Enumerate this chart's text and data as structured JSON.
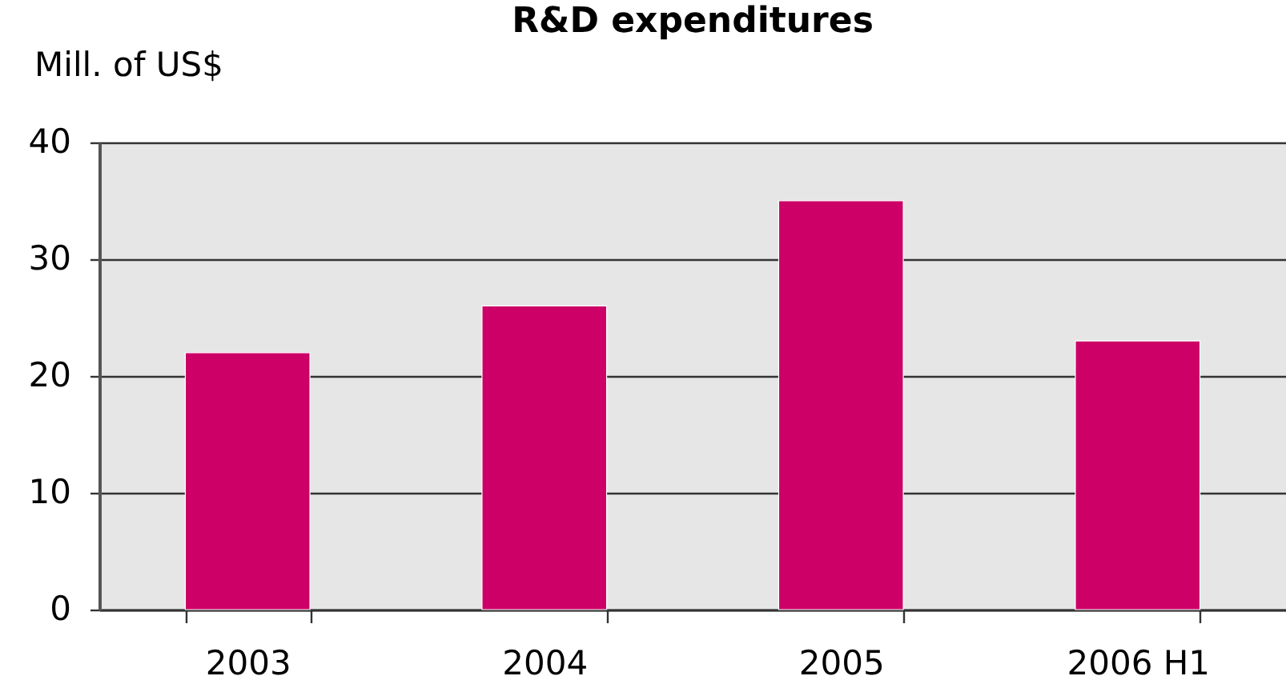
{
  "chart_data": {
    "type": "bar",
    "title": "R&D expenditures",
    "ylabel": "Mill. of US$",
    "categories": [
      "2003",
      "2004",
      "2005",
      "2006 H1"
    ],
    "values": [
      22,
      26,
      35,
      23
    ],
    "color": "#cc0066",
    "ylim": [
      0,
      40
    ],
    "yticks": [
      0,
      10,
      20,
      30,
      40
    ],
    "grid": "y"
  }
}
